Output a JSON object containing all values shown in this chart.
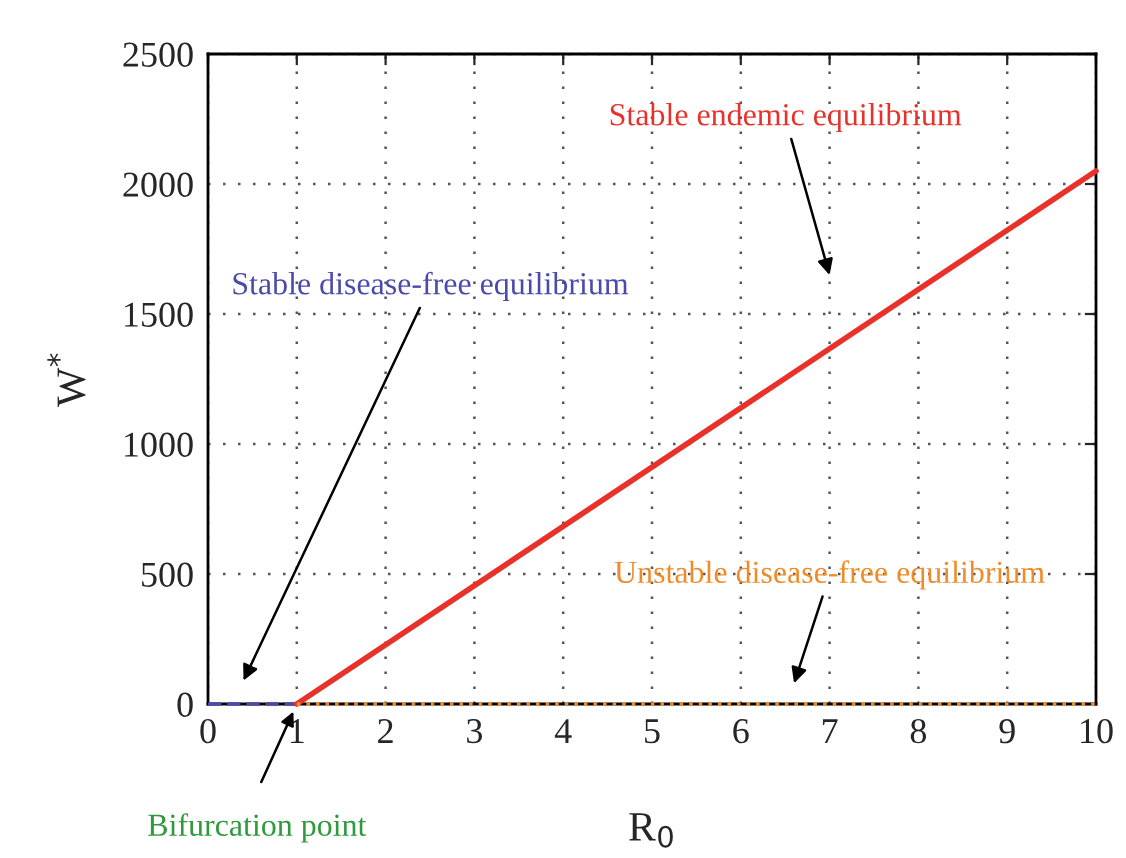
{
  "chart_data": {
    "type": "line",
    "xlabel": "R$_{0}$",
    "ylabel": "W$^{*}$",
    "xlim": [
      0,
      10
    ],
    "ylim": [
      0,
      2500
    ],
    "xticks": [
      0,
      1,
      2,
      3,
      4,
      5,
      6,
      7,
      8,
      9,
      10
    ],
    "yticks": [
      0,
      500,
      1000,
      1500,
      2000,
      2500
    ],
    "grid": true,
    "series": [
      {
        "name": "Stable disease-free equilibrium",
        "color": "#4a4aaa",
        "line_style": "dashed",
        "x": [
          0,
          1
        ],
        "values": [
          0,
          0
        ]
      },
      {
        "name": "Stable endemic equilibrium",
        "color": "#e8312a",
        "line_style": "solid",
        "x": [
          1,
          10
        ],
        "values": [
          0,
          2050
        ]
      },
      {
        "name": "Unstable disease-free equilibrium",
        "color": "#f08c28",
        "line_style": "dotted",
        "x": [
          1,
          10
        ],
        "values": [
          0,
          0
        ]
      }
    ],
    "annotations": [
      {
        "text": "Bifurcation point",
        "x": 1,
        "y": 0
      }
    ]
  }
}
